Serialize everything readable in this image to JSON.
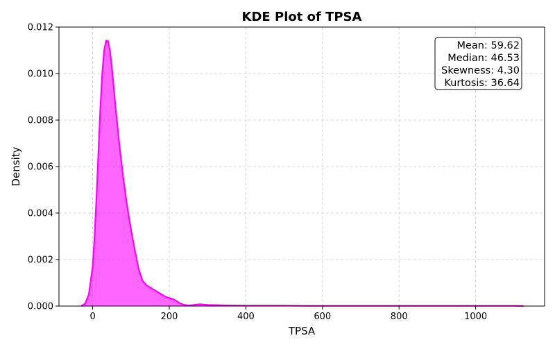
{
  "chart_data": {
    "type": "area",
    "title": "KDE Plot of TPSA",
    "xlabel": "TPSA",
    "ylabel": "Density",
    "xlim": [
      -88,
      1180
    ],
    "ylim": [
      0,
      0.012
    ],
    "xticks": [
      0,
      200,
      400,
      600,
      800,
      1000
    ],
    "xtick_labels": [
      "0",
      "200",
      "400",
      "600",
      "800",
      "1000"
    ],
    "yticks": [
      0,
      0.002,
      0.004,
      0.006,
      0.008,
      0.01,
      0.012
    ],
    "ytick_labels": [
      "0.000",
      "0.002",
      "0.004",
      "0.006",
      "0.008",
      "0.010",
      "0.012"
    ],
    "grid": true,
    "series": [
      {
        "color": "#ff00ff",
        "x": [
          -30,
          -20,
          -10,
          0,
          5,
          10,
          15,
          20,
          25,
          30,
          35,
          40,
          45,
          50,
          55,
          60,
          65,
          70,
          80,
          90,
          100,
          110,
          120,
          130,
          140,
          150,
          160,
          170,
          180,
          190,
          200,
          210,
          220,
          230,
          240,
          250,
          260,
          280,
          300,
          320,
          350,
          400,
          450,
          500,
          550,
          600,
          650,
          700,
          750,
          800,
          850,
          900,
          950,
          1000,
          1050,
          1100,
          1125
        ],
        "y": [
          0,
          0.0001,
          0.0005,
          0.0017,
          0.003,
          0.0047,
          0.0066,
          0.0085,
          0.01,
          0.011,
          0.01142,
          0.0114,
          0.011,
          0.0103,
          0.0094,
          0.0085,
          0.0077,
          0.0069,
          0.0055,
          0.0043,
          0.0033,
          0.0024,
          0.0016,
          0.0011,
          0.0009,
          0.0008,
          0.0007,
          0.0006,
          0.0005,
          0.0004,
          0.00035,
          0.0003,
          0.0002,
          0.0001,
          5e-05,
          3e-05,
          4e-05,
          8e-05,
          5e-05,
          4e-05,
          3e-05,
          2e-05,
          2e-05,
          2e-05,
          1e-05,
          1e-05,
          1e-05,
          1e-05,
          1e-05,
          1e-05,
          1e-05,
          1e-05,
          1e-05,
          1e-05,
          1e-05,
          1e-05,
          0
        ]
      }
    ],
    "annotation": {
      "lines": [
        "Mean: 59.62",
        "Median: 46.53",
        "Skewness: 4.30",
        "Kurtosis: 36.64"
      ]
    }
  }
}
